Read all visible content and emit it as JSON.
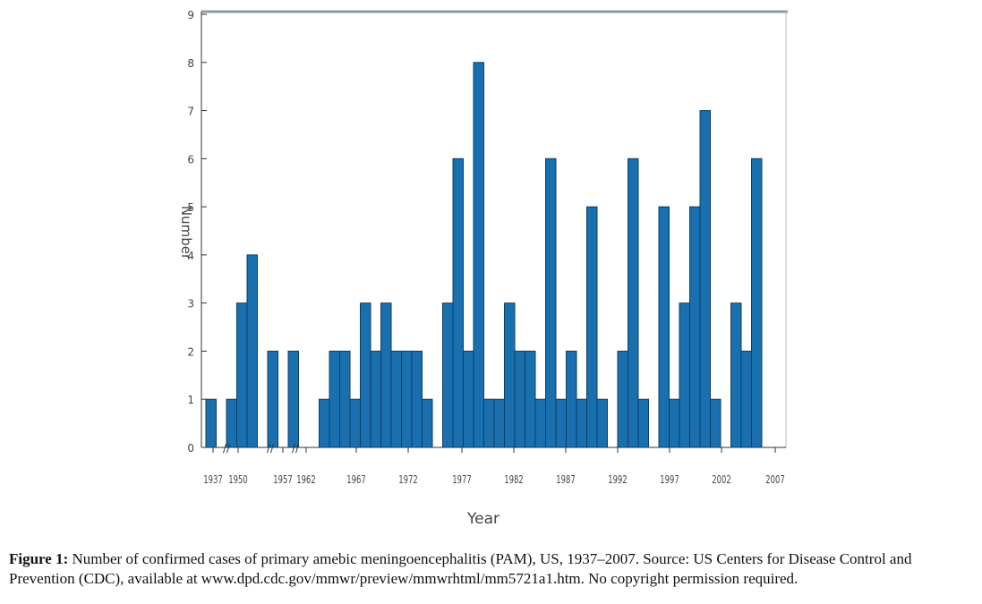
{
  "chart_data": {
    "type": "bar",
    "title": "",
    "xlabel": "Year",
    "ylabel": "Number",
    "ylim": [
      0,
      9
    ],
    "yticks": [
      "0",
      "1",
      "2",
      "3",
      "4",
      "5",
      "6",
      "7",
      "8",
      "9"
    ],
    "x_tick_labels": [
      "1937",
      "1950",
      "1957",
      "1962",
      "1967",
      "1972",
      "1977",
      "1982",
      "1987",
      "1992",
      "1997",
      "2002",
      "2007"
    ],
    "axis_breaks": [
      "//",
      "//",
      "//"
    ],
    "bar_color": "#1a6fae",
    "values": [
      1,
      0,
      1,
      3,
      4,
      0,
      2,
      0,
      2,
      0,
      0,
      1,
      2,
      2,
      1,
      3,
      2,
      3,
      2,
      2,
      2,
      1,
      0,
      3,
      6,
      2,
      8,
      1,
      1,
      3,
      2,
      2,
      1,
      6,
      1,
      2,
      1,
      5,
      1,
      0,
      2,
      6,
      1,
      0,
      5,
      1,
      3,
      5,
      7,
      1,
      0,
      3,
      2,
      6
    ]
  },
  "caption": {
    "label": "Figure 1:",
    "text": " Number of confirmed cases of primary amebic meningoencephalitis (PAM), US, 1937–2007. Source: US Centers for Disease Control and Prevention (CDC), available at www.dpd.cdc.gov/mmwr/preview/mmwrhtml/mm5721a1.htm. No copyright permission required."
  }
}
